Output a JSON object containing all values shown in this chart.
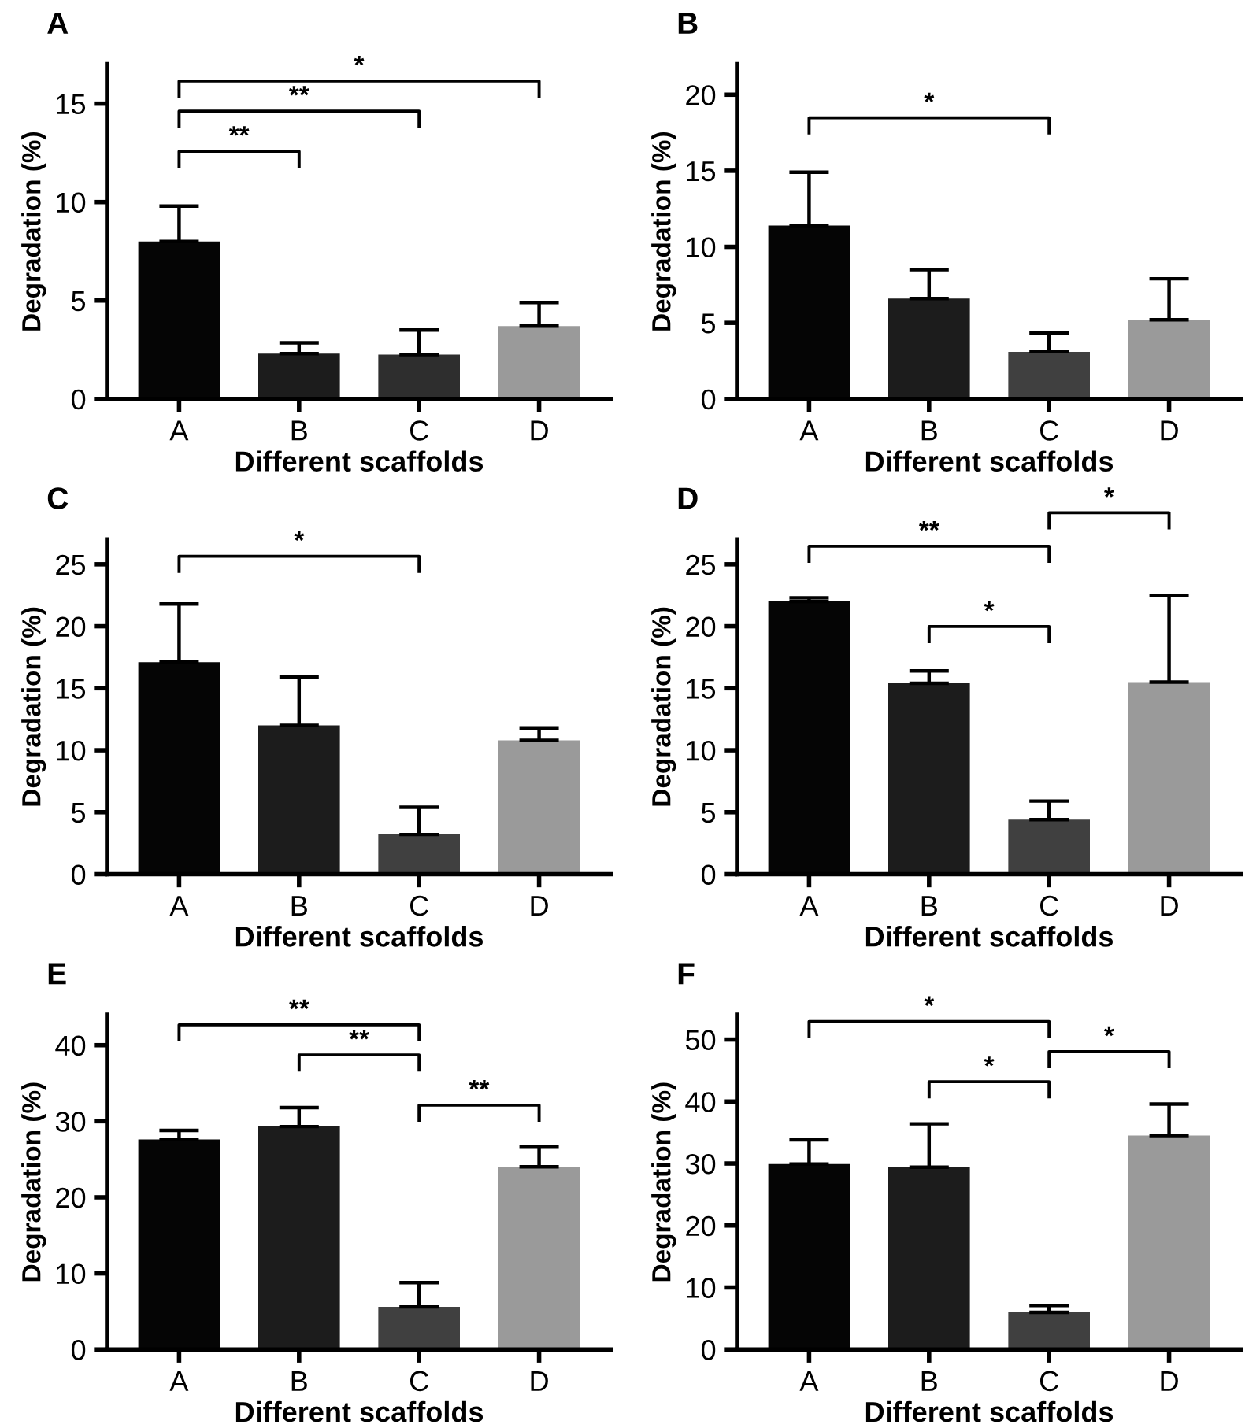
{
  "chart_data": [
    {
      "type": "bar",
      "title": "A",
      "categories": [
        "A",
        "B",
        "C",
        "D"
      ],
      "values": [
        8.0,
        2.3,
        2.25,
        3.7
      ],
      "colors": [
        "#050505",
        "#1c1c1c",
        "#2e2e2e",
        "#9a9a9a"
      ],
      "errors": [
        [
          8.0,
          9.8
        ],
        [
          2.3,
          2.85
        ],
        [
          2.25,
          3.5
        ],
        [
          3.7,
          4.9
        ]
      ],
      "ylim": [
        0,
        17
      ],
      "yticks": [
        0,
        5,
        10,
        15
      ],
      "xlabel": "Different scaffolds",
      "ylabel": "Degradation (%)",
      "annotations": [
        "**",
        "**",
        "*"
      ],
      "grid": false,
      "legend": false
    },
    {
      "type": "bar",
      "title": "B",
      "categories": [
        "A",
        "B",
        "C",
        "D"
      ],
      "values": [
        11.4,
        6.6,
        3.1,
        5.2
      ],
      "colors": [
        "#050505",
        "#1c1c1c",
        "#404040",
        "#9a9a9a"
      ],
      "errors": [
        [
          11.4,
          14.9
        ],
        [
          6.6,
          8.5
        ],
        [
          3.1,
          4.35
        ],
        [
          5.2,
          7.9
        ]
      ],
      "ylim": [
        0,
        22
      ],
      "yticks": [
        0,
        5,
        10,
        15,
        20
      ],
      "xlabel": "Different scaffolds",
      "ylabel": "Degradation (%)",
      "annotations": [
        "*"
      ],
      "grid": false,
      "legend": false
    },
    {
      "type": "bar",
      "title": "C",
      "categories": [
        "A",
        "B",
        "C",
        "D"
      ],
      "values": [
        17.1,
        12.0,
        3.2,
        10.8
      ],
      "colors": [
        "#050505",
        "#1c1c1c",
        "#404040",
        "#9a9a9a"
      ],
      "errors": [
        [
          17.1,
          21.8
        ],
        [
          12.0,
          15.9
        ],
        [
          3.2,
          5.4
        ],
        [
          10.8,
          11.8
        ]
      ],
      "ylim": [
        0,
        27
      ],
      "yticks": [
        0,
        5,
        10,
        15,
        20,
        25
      ],
      "xlabel": "Different scaffolds",
      "ylabel": "Degradation (%)",
      "annotations": [
        "*"
      ],
      "grid": false,
      "legend": false
    },
    {
      "type": "bar",
      "title": "D",
      "categories": [
        "A",
        "B",
        "C",
        "D"
      ],
      "values": [
        22.0,
        15.4,
        4.4,
        15.5
      ],
      "colors": [
        "#050505",
        "#1c1c1c",
        "#404040",
        "#9a9a9a"
      ],
      "errors": [
        [
          22.0,
          22.3
        ],
        [
          15.4,
          16.4
        ],
        [
          4.4,
          5.9
        ],
        [
          15.5,
          22.5
        ]
      ],
      "ylim": [
        0,
        27
      ],
      "yticks": [
        0,
        5,
        10,
        15,
        20,
        25
      ],
      "xlabel": "Different scaffolds",
      "ylabel": "Degradation (%)",
      "annotations": [
        "**",
        "*",
        "*"
      ],
      "grid": false,
      "legend": false
    },
    {
      "type": "bar",
      "title": "E",
      "categories": [
        "A",
        "B",
        "C",
        "D"
      ],
      "values": [
        27.6,
        29.3,
        5.6,
        24.0
      ],
      "colors": [
        "#050505",
        "#1c1c1c",
        "#404040",
        "#9a9a9a"
      ],
      "errors": [
        [
          27.6,
          28.8
        ],
        [
          29.3,
          31.8
        ],
        [
          5.6,
          8.8
        ],
        [
          24.0,
          26.7
        ]
      ],
      "ylim": [
        0,
        44
      ],
      "yticks": [
        0,
        10,
        20,
        30,
        40
      ],
      "xlabel": "Different scaffolds",
      "ylabel": "Degradation (%)",
      "annotations": [
        "**",
        "**",
        "**"
      ],
      "grid": false,
      "legend": false
    },
    {
      "type": "bar",
      "title": "F",
      "categories": [
        "A",
        "B",
        "C",
        "D"
      ],
      "values": [
        29.9,
        29.4,
        6.0,
        34.5
      ],
      "colors": [
        "#050505",
        "#1c1c1c",
        "#404040",
        "#9a9a9a"
      ],
      "errors": [
        [
          29.9,
          33.8
        ],
        [
          29.4,
          36.4
        ],
        [
          6.0,
          7.1
        ],
        [
          34.5,
          39.6
        ]
      ],
      "ylim": [
        0,
        54
      ],
      "yticks": [
        0,
        10,
        20,
        30,
        40,
        50
      ],
      "xlabel": "Different scaffolds",
      "ylabel": "Degradation (%)",
      "annotations": [
        "*",
        "*",
        "*"
      ],
      "grid": false,
      "legend": false
    }
  ]
}
